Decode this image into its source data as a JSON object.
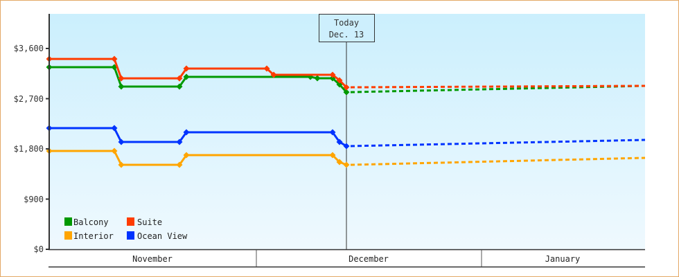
{
  "chart_data": {
    "type": "line",
    "title": "",
    "xlabel": "",
    "ylabel": "",
    "ylim": [
      0,
      4250
    ],
    "y_ticks": [
      {
        "value": 0,
        "label": "$0"
      },
      {
        "value": 900,
        "label": "$900"
      },
      {
        "value": 1800,
        "label": "$1,800"
      },
      {
        "value": 2700,
        "label": "$2,700"
      },
      {
        "value": 3600,
        "label": "$3,600"
      }
    ],
    "x_months": [
      "November",
      "December",
      "January"
    ],
    "today_marker": {
      "line1": "Today",
      "line2": "Dec. 13"
    },
    "grid": false,
    "legend_position": "bottom-left",
    "legend": [
      "Balcony",
      "Suite",
      "Interior",
      "Ocean View"
    ],
    "series": [
      {
        "name": "Suite",
        "color": "#ff3c00",
        "historical": [
          [
            71,
            3413
          ],
          [
            165,
            3413
          ],
          [
            175,
            3065
          ],
          [
            259,
            3065
          ],
          [
            269,
            3240
          ],
          [
            385,
            3240
          ],
          [
            395,
            3128
          ],
          [
            480,
            3128
          ],
          [
            490,
            3029
          ],
          [
            500,
            2904
          ]
        ],
        "forecast_end": [
          931,
          2930
        ]
      },
      {
        "name": "Balcony",
        "color": "#009900",
        "historical": [
          [
            71,
            3265
          ],
          [
            165,
            3265
          ],
          [
            175,
            2917
          ],
          [
            259,
            2917
          ],
          [
            269,
            3091
          ],
          [
            448,
            3091
          ],
          [
            458,
            3066
          ],
          [
            480,
            3066
          ],
          [
            490,
            2954
          ],
          [
            500,
            2817
          ]
        ],
        "forecast_end": [
          931,
          2930
        ]
      },
      {
        "name": "Ocean View",
        "color": "#0033ff",
        "historical": [
          [
            71,
            2172
          ],
          [
            165,
            2172
          ],
          [
            175,
            1924
          ],
          [
            259,
            1924
          ],
          [
            269,
            2098
          ],
          [
            480,
            2098
          ],
          [
            490,
            1924
          ],
          [
            500,
            1850
          ]
        ],
        "forecast_end": [
          931,
          1961
        ]
      },
      {
        "name": "Interior",
        "color": "#ffa500",
        "historical": [
          [
            71,
            1763
          ],
          [
            165,
            1763
          ],
          [
            175,
            1514
          ],
          [
            259,
            1514
          ],
          [
            269,
            1688
          ],
          [
            480,
            1688
          ],
          [
            490,
            1564
          ],
          [
            500,
            1514
          ]
        ],
        "forecast_end": [
          931,
          1639
        ]
      }
    ]
  },
  "legend": {
    "items": [
      {
        "label": "Balcony",
        "color": "#009900"
      },
      {
        "label": "Suite",
        "color": "#ff3c00"
      },
      {
        "label": "Interior",
        "color": "#ffa500"
      },
      {
        "label": "Ocean View",
        "color": "#0033ff"
      }
    ]
  },
  "axis": {
    "y_labels": [
      "$0",
      "$900",
      "$1,800",
      "$2,700",
      "$3,600"
    ],
    "months": [
      "November",
      "December",
      "January"
    ]
  },
  "today": {
    "line1": "Today",
    "line2": "Dec. 13"
  }
}
